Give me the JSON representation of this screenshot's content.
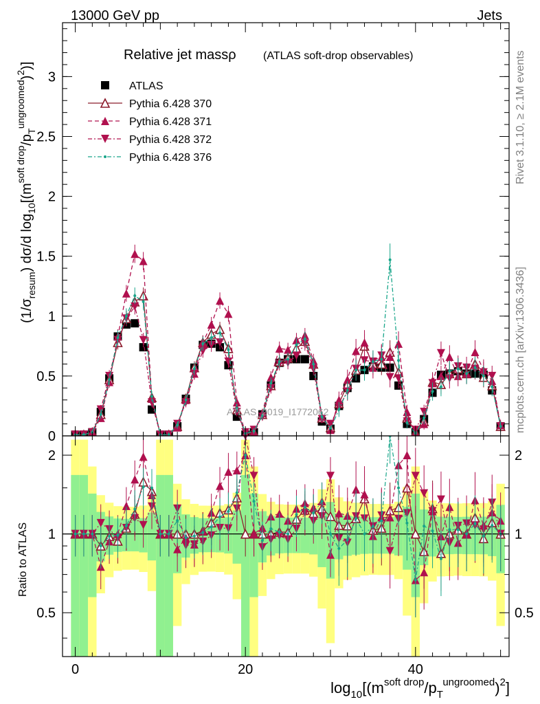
{
  "header": {
    "left": "13000 GeV pp",
    "right": "Jets"
  },
  "side_text": {
    "rivet": "Rivet 3.1.10, ≥ 2.1M events",
    "mcplots": "mcplots.cern.ch [arXiv:1306.3436]"
  },
  "chart_data": {
    "type": "line",
    "title": "Relative jet massρ",
    "subtitle": "(ATLAS soft-drop observables)",
    "watermark": "ATLAS_2019_I1772062",
    "xlabel": "log10[(m^soft drop/pT^ungroomed)^2]",
    "ylabel": "(1/σresum) dσ/d log10[(m^soft drop/pT^ungroomed)^2]",
    "ratio_ylabel": "Ratio to ATLAS",
    "xlim": [
      -1.5,
      51
    ],
    "ylim": [
      0,
      3.45
    ],
    "ratio_ylim": [
      0.34,
      2.37
    ],
    "x_ticks": [
      0,
      20,
      40
    ],
    "y_ticks": [
      0,
      0.5,
      1,
      1.5,
      2,
      2.5,
      3
    ],
    "ratio_ticks": [
      0.5,
      1,
      2
    ],
    "x": [
      0,
      1,
      2,
      3,
      4,
      5,
      6,
      7,
      8,
      9,
      10,
      11,
      12,
      13,
      14,
      15,
      16,
      17,
      18,
      19,
      20,
      21,
      22,
      23,
      24,
      25,
      26,
      27,
      28,
      29,
      30,
      31,
      32,
      33,
      34,
      35,
      36,
      37,
      38,
      39,
      40,
      41,
      42,
      43,
      44,
      45,
      46,
      47,
      48,
      49,
      50
    ],
    "series": [
      {
        "name": "ATLAS",
        "color": "#000000",
        "marker": "square",
        "values": [
          0.01,
          0.01,
          0.03,
          0.2,
          0.48,
          0.83,
          0.93,
          0.94,
          0.74,
          0.22,
          0.01,
          0.01,
          0.08,
          0.31,
          0.57,
          0.76,
          0.77,
          0.74,
          0.59,
          0.16,
          0.01,
          0.03,
          0.18,
          0.42,
          0.61,
          0.64,
          0.64,
          0.64,
          0.5,
          0.12,
          0.06,
          0.25,
          0.4,
          0.48,
          0.55,
          0.58,
          0.57,
          0.57,
          0.42,
          0.1,
          0.03,
          0.14,
          0.36,
          0.51,
          0.52,
          0.54,
          0.52,
          0.52,
          0.51,
          0.38,
          0.08
        ]
      },
      {
        "name": "Pythia 6.428 370",
        "color": "#8b1a2b",
        "marker": "triangle-open",
        "line": "solid",
        "values": [
          0.01,
          0.01,
          0.03,
          0.18,
          0.47,
          0.78,
          0.98,
          1.12,
          1.17,
          0.32,
          0.01,
          0.01,
          0.08,
          0.31,
          0.57,
          0.78,
          0.85,
          0.89,
          0.73,
          0.22,
          0.01,
          0.03,
          0.18,
          0.42,
          0.62,
          0.65,
          0.73,
          0.79,
          0.6,
          0.15,
          0.07,
          0.27,
          0.43,
          0.55,
          0.75,
          0.6,
          0.6,
          0.7,
          0.53,
          0.15,
          0.03,
          0.12,
          0.45,
          0.43,
          0.52,
          0.56,
          0.52,
          0.6,
          0.49,
          0.42,
          0.08
        ]
      },
      {
        "name": "Pythia 6.428 371",
        "color": "#b0104e",
        "marker": "triangle",
        "line": "dashed",
        "values": [
          0.01,
          0.01,
          0.03,
          0.15,
          0.45,
          0.83,
          1.19,
          1.52,
          1.46,
          0.31,
          0.01,
          0.01,
          0.07,
          0.3,
          0.52,
          0.78,
          0.93,
          1.13,
          1.02,
          0.28,
          0.02,
          0.03,
          0.19,
          0.49,
          0.73,
          0.72,
          0.8,
          0.84,
          0.63,
          0.16,
          0.05,
          0.3,
          0.47,
          0.71,
          0.78,
          0.57,
          0.66,
          0.66,
          0.77,
          0.2,
          0.02,
          0.1,
          0.44,
          0.5,
          0.66,
          0.5,
          0.52,
          0.7,
          0.55,
          0.46,
          0.09
        ]
      },
      {
        "name": "Pythia 6.428 372",
        "color": "#b0104e",
        "marker": "triangle-down",
        "line": "dashdot",
        "values": [
          0.01,
          0.01,
          0.03,
          0.22,
          0.5,
          0.8,
          0.98,
          1.08,
          0.8,
          0.28,
          0.01,
          0.01,
          0.1,
          0.28,
          0.52,
          0.71,
          0.76,
          0.78,
          0.62,
          0.2,
          0.03,
          0.05,
          0.16,
          0.4,
          0.6,
          0.61,
          0.67,
          0.77,
          0.56,
          0.14,
          0.1,
          0.24,
          0.37,
          0.56,
          0.63,
          0.62,
          0.67,
          0.49,
          0.48,
          0.12,
          0.05,
          0.2,
          0.44,
          0.69,
          0.48,
          0.58,
          0.57,
          0.56,
          0.53,
          0.5,
          0.08
        ]
      },
      {
        "name": "Pythia 6.428 376",
        "color": "#17a589",
        "marker": "dot",
        "line": "dashdot",
        "values": [
          0.01,
          0.01,
          0.03,
          0.18,
          0.47,
          0.82,
          1.0,
          1.17,
          1.12,
          0.33,
          0.01,
          0.01,
          0.09,
          0.3,
          0.56,
          0.77,
          0.82,
          0.86,
          0.72,
          0.23,
          0.02,
          0.04,
          0.17,
          0.44,
          0.62,
          0.64,
          0.76,
          0.81,
          0.6,
          0.16,
          0.06,
          0.22,
          0.38,
          0.55,
          0.55,
          0.62,
          0.64,
          1.47,
          0.63,
          0.11,
          0.02,
          0.15,
          0.37,
          0.41,
          0.54,
          0.56,
          0.52,
          0.57,
          0.5,
          0.41,
          0.08
        ]
      }
    ]
  }
}
